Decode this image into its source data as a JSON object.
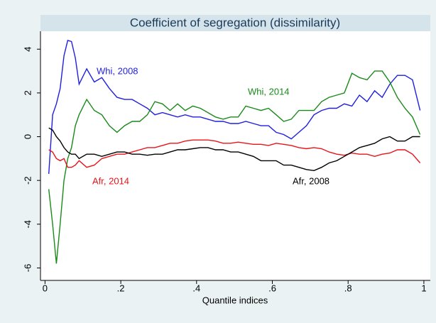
{
  "chart_data": {
    "type": "line",
    "title": "Coefficient of segregation (dissimilarity)",
    "x_label": "Quantile indices",
    "x": [
      0.01,
      0.02,
      0.03,
      0.04,
      0.05,
      0.06,
      0.07,
      0.08,
      0.09,
      0.11,
      0.13,
      0.15,
      0.17,
      0.19,
      0.21,
      0.23,
      0.25,
      0.27,
      0.29,
      0.31,
      0.33,
      0.35,
      0.37,
      0.39,
      0.41,
      0.43,
      0.45,
      0.47,
      0.49,
      0.51,
      0.53,
      0.55,
      0.57,
      0.59,
      0.61,
      0.63,
      0.65,
      0.67,
      0.69,
      0.71,
      0.73,
      0.75,
      0.77,
      0.79,
      0.81,
      0.83,
      0.85,
      0.87,
      0.89,
      0.91,
      0.93,
      0.95,
      0.97,
      0.99
    ],
    "series": [
      {
        "name": "Whi, 2008",
        "color": "#1f1fe0",
        "values": [
          -1.7,
          1.0,
          1.5,
          2.2,
          3.7,
          4.4,
          4.35,
          3.6,
          2.4,
          3.1,
          2.5,
          2.7,
          2.2,
          1.8,
          1.7,
          1.7,
          1.5,
          1.3,
          1.0,
          1.1,
          1.0,
          0.9,
          1.0,
          0.9,
          0.9,
          0.8,
          0.7,
          0.7,
          0.6,
          0.6,
          0.7,
          0.6,
          0.5,
          0.5,
          0.2,
          0.1,
          -0.1,
          0.2,
          0.5,
          1.0,
          1.2,
          1.3,
          1.3,
          1.5,
          1.4,
          1.9,
          1.6,
          2.1,
          1.8,
          2.4,
          2.8,
          2.8,
          2.6,
          1.2
        ]
      },
      {
        "name": "Whi, 2014",
        "color": "#1a8a1a",
        "values": [
          -2.4,
          -4.0,
          -5.8,
          -4.0,
          -2.0,
          -1.0,
          -0.5,
          0.5,
          1.0,
          1.7,
          1.2,
          1.0,
          0.5,
          0.2,
          0.5,
          0.7,
          0.7,
          1.0,
          1.6,
          1.5,
          1.2,
          1.5,
          1.2,
          1.4,
          1.3,
          1.1,
          0.9,
          0.8,
          0.9,
          0.9,
          1.4,
          1.3,
          1.2,
          1.3,
          1.0,
          0.7,
          0.8,
          1.2,
          1.2,
          1.2,
          1.6,
          1.8,
          1.9,
          2.0,
          2.9,
          2.7,
          2.6,
          3.0,
          3.0,
          2.5,
          1.8,
          1.3,
          0.9,
          0.1
        ]
      },
      {
        "name": "Afr, 2014",
        "color": "#e8141a",
        "values": [
          -0.6,
          -0.7,
          -1.0,
          -1.1,
          -1.0,
          -1.4,
          -1.4,
          -1.3,
          -1.1,
          -1.4,
          -1.3,
          -1.0,
          -0.9,
          -0.8,
          -0.8,
          -0.7,
          -0.6,
          -0.5,
          -0.5,
          -0.4,
          -0.3,
          -0.3,
          -0.2,
          -0.15,
          -0.15,
          -0.15,
          -0.2,
          -0.3,
          -0.3,
          -0.25,
          -0.3,
          -0.35,
          -0.35,
          -0.4,
          -0.3,
          -0.35,
          -0.4,
          -0.5,
          -0.55,
          -0.5,
          -0.55,
          -0.7,
          -0.8,
          -0.85,
          -0.75,
          -0.8,
          -0.8,
          -0.9,
          -0.8,
          -0.75,
          -0.6,
          -0.6,
          -0.8,
          -1.2
        ]
      },
      {
        "name": "Afr, 2008",
        "color": "#000000",
        "values": [
          0.4,
          0.3,
          0.0,
          -0.2,
          -0.5,
          -0.7,
          -0.8,
          -0.8,
          -1.0,
          -0.8,
          -0.8,
          -0.9,
          -0.8,
          -0.7,
          -0.7,
          -0.8,
          -0.8,
          -0.85,
          -0.8,
          -0.8,
          -0.7,
          -0.6,
          -0.6,
          -0.55,
          -0.5,
          -0.5,
          -0.6,
          -0.6,
          -0.7,
          -0.7,
          -0.8,
          -0.9,
          -1.1,
          -1.1,
          -1.1,
          -1.3,
          -1.3,
          -1.4,
          -1.5,
          -1.55,
          -1.4,
          -1.2,
          -1.1,
          -0.9,
          -0.7,
          -0.5,
          -0.4,
          -0.3,
          -0.1,
          0.0,
          -0.2,
          -0.2,
          0.0,
          0.0
        ]
      }
    ],
    "xlim": [
      -0.012,
      1.017
    ],
    "xticks": [
      0,
      {
        "value": 0.2,
        "label": ".2"
      },
      {
        "value": 0.4,
        "label": ".4"
      },
      {
        "value": 0.6,
        "label": ".6"
      },
      {
        "value": 0.8,
        "label": ".8"
      },
      1
    ],
    "ylim": [
      -6.57,
      4.82
    ],
    "yticks": [
      -6,
      -4,
      -2,
      0,
      2,
      4
    ],
    "grid": false
  }
}
